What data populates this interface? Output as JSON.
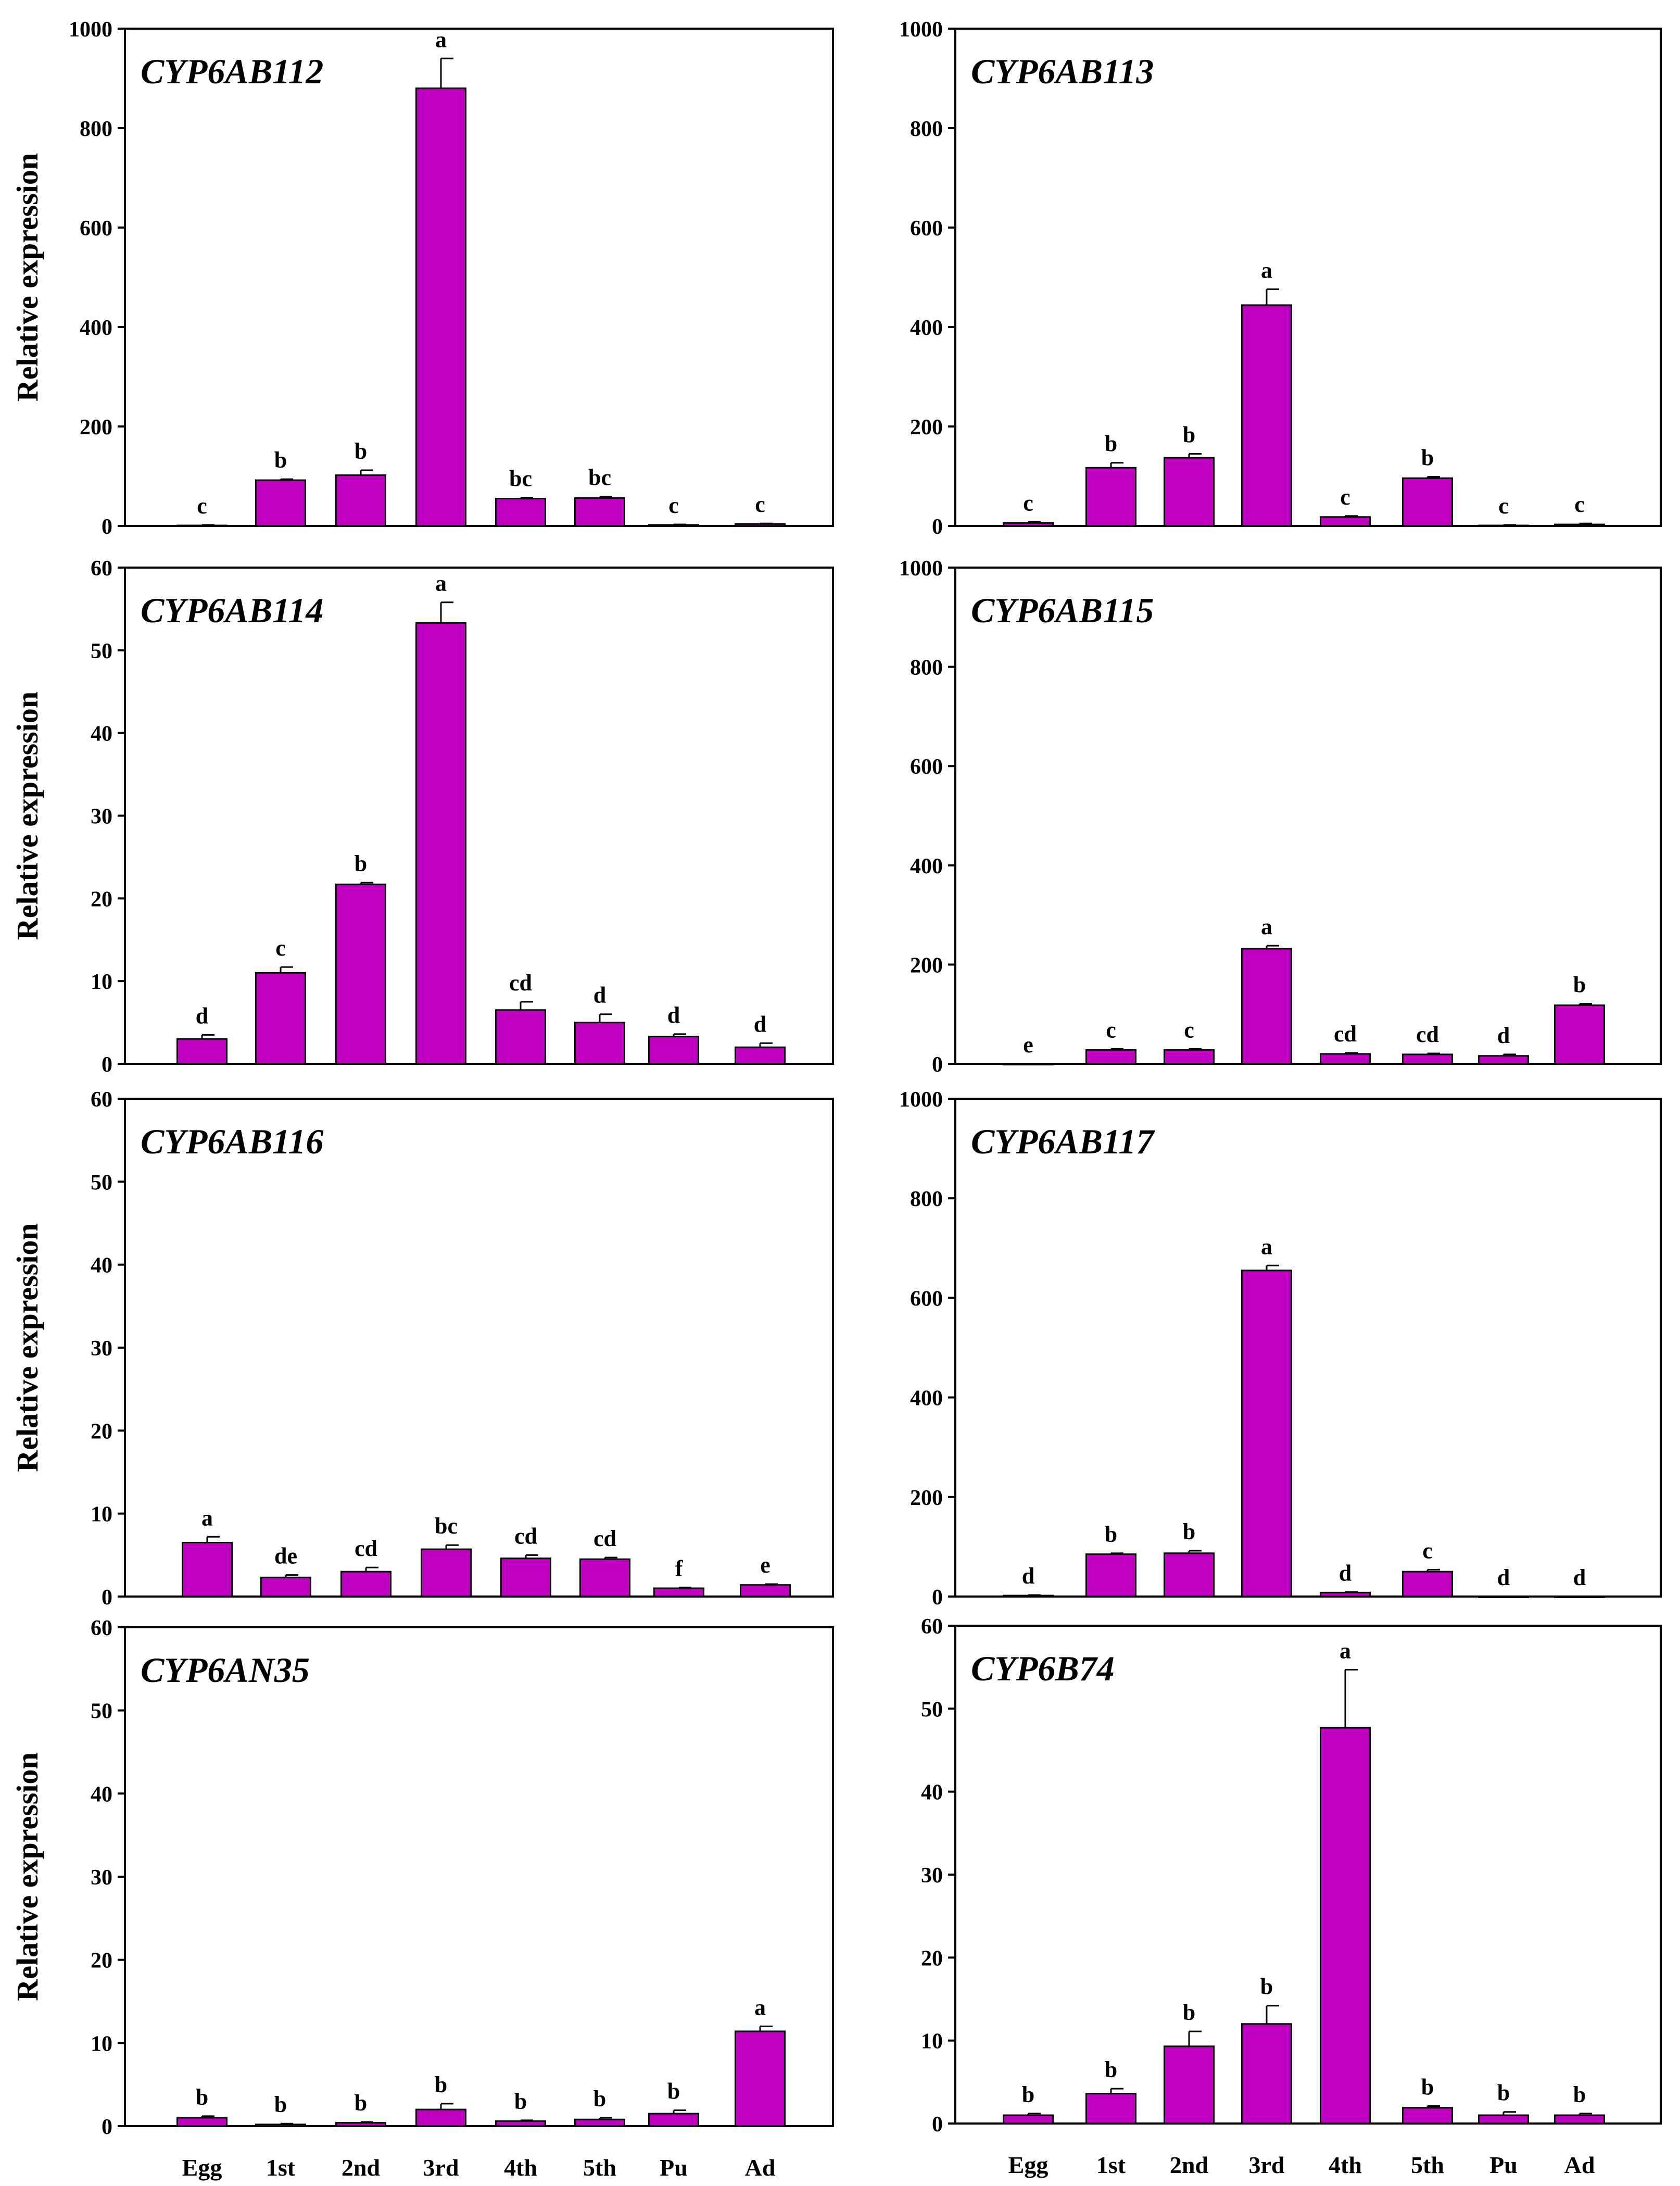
{
  "figure": {
    "bar_color": "#c000c0",
    "axis_color": "#000000",
    "ylabel": "Relative expression",
    "categories": [
      "Egg",
      "1st",
      "2nd",
      "3rd",
      "4th",
      "5th",
      "Pu",
      "Ad"
    ]
  },
  "chart_data": [
    {
      "type": "bar",
      "title": "CYP6AB112",
      "ylabel": "Relative expression",
      "ylim": [
        0,
        1000
      ],
      "yticks": [
        0,
        200,
        400,
        600,
        800,
        1000
      ],
      "categories": [
        "Egg",
        "1st",
        "2nd",
        "3rd",
        "4th",
        "5th",
        "Pu",
        "Ad"
      ],
      "values": [
        1,
        92,
        102,
        880,
        55,
        56,
        2,
        4
      ],
      "errors": [
        1,
        2,
        10,
        60,
        2,
        3,
        1,
        1
      ],
      "labels": [
        "c",
        "b",
        "b",
        "a",
        "bc",
        "bc",
        "c",
        "c"
      ],
      "bar_offset": 0
    },
    {
      "type": "bar",
      "title": "CYP6AB113",
      "ylabel": "",
      "ylim": [
        0,
        1000
      ],
      "yticks": [
        0,
        200,
        400,
        600,
        800,
        1000
      ],
      "categories": [
        "Egg",
        "1st",
        "2nd",
        "3rd",
        "4th",
        "5th",
        "Pu",
        "Ad"
      ],
      "values": [
        6,
        117,
        137,
        444,
        18,
        96,
        1,
        3
      ],
      "errors": [
        2,
        10,
        8,
        32,
        2,
        3,
        1,
        2
      ],
      "labels": [
        "c",
        "b",
        "b",
        "a",
        "c",
        "b",
        "c",
        "c"
      ],
      "bar_offset": 0
    },
    {
      "type": "bar",
      "title": "CYP6AB114",
      "ylabel": "Relative expression",
      "ylim": [
        0,
        60
      ],
      "yticks": [
        0,
        10,
        20,
        30,
        40,
        50,
        60
      ],
      "categories": [
        "Egg",
        "1st",
        "2nd",
        "3rd",
        "4th",
        "5th",
        "Pu",
        "Ad"
      ],
      "values": [
        3.0,
        11.0,
        21.7,
        53.3,
        6.5,
        5.0,
        3.3,
        2.0
      ],
      "errors": [
        0.5,
        0.7,
        0.2,
        2.5,
        1.0,
        1.0,
        0.3,
        0.5
      ],
      "labels": [
        "d",
        "c",
        "b",
        "a",
        "cd",
        "d",
        "d",
        "d"
      ],
      "bar_offset": 0
    },
    {
      "type": "bar",
      "title": "CYP6AB115",
      "ylabel": "",
      "ylim": [
        0,
        1000
      ],
      "yticks": [
        0,
        200,
        400,
        600,
        800,
        1000
      ],
      "categories": [
        "Egg",
        "1st",
        "2nd",
        "3rd",
        "4th",
        "5th",
        "Pu",
        "Ad"
      ],
      "values": [
        0,
        28,
        28,
        232,
        20,
        19,
        16,
        118
      ],
      "errors": [
        0,
        2,
        2,
        6,
        2,
        2,
        3,
        3
      ],
      "labels": [
        "e",
        "c",
        "c",
        "a",
        "cd",
        "cd",
        "d",
        "b"
      ],
      "bar_offset": 0
    },
    {
      "type": "bar",
      "title": "CYP6AB116",
      "ylabel": "Relative expression",
      "ylim": [
        0,
        60
      ],
      "yticks": [
        0,
        10,
        20,
        30,
        40,
        50,
        60
      ],
      "categories": [
        "Egg",
        "1st",
        "2nd",
        "3rd",
        "4th",
        "5th",
        "Pu",
        "Ad"
      ],
      "values": [
        6.5,
        2.3,
        3.0,
        5.7,
        4.6,
        4.5,
        1.0,
        1.4
      ],
      "errors": [
        0.7,
        0.3,
        0.5,
        0.5,
        0.4,
        0.2,
        0.1,
        0.1
      ],
      "labels": [
        "a",
        "de",
        "cd",
        "bc",
        "cd",
        "cd",
        "f",
        "e"
      ],
      "bar_offset": 10
    },
    {
      "type": "bar",
      "title": "CYP6AB117",
      "ylabel": "",
      "ylim": [
        0,
        1000
      ],
      "yticks": [
        0,
        200,
        400,
        600,
        800,
        1000
      ],
      "categories": [
        "Egg",
        "1st",
        "2nd",
        "3rd",
        "4th",
        "5th",
        "Pu",
        "Ad"
      ],
      "values": [
        2,
        85,
        87,
        655,
        8,
        50,
        0,
        0
      ],
      "errors": [
        1,
        2,
        5,
        10,
        1,
        4,
        0,
        0
      ],
      "labels": [
        "d",
        "b",
        "b",
        "a",
        "d",
        "c",
        "d",
        "d"
      ],
      "bar_offset": 0
    },
    {
      "type": "bar",
      "title": "CYP6AN35",
      "ylabel": "Relative expression",
      "ylim": [
        0,
        60
      ],
      "yticks": [
        0,
        10,
        20,
        30,
        40,
        50,
        60
      ],
      "categories": [
        "Egg",
        "1st",
        "2nd",
        "3rd",
        "4th",
        "5th",
        "Pu",
        "Ad"
      ],
      "values": [
        1.0,
        0.2,
        0.4,
        2.0,
        0.6,
        0.8,
        1.5,
        11.4
      ],
      "errors": [
        0.2,
        0.1,
        0.1,
        0.7,
        0.1,
        0.2,
        0.4,
        0.6
      ],
      "labels": [
        "b",
        "b",
        "b",
        "b",
        "b",
        "b",
        "b",
        "a"
      ],
      "bar_offset": 0
    },
    {
      "type": "bar",
      "title": "CYP6B74",
      "ylabel": "",
      "ylim": [
        0,
        60
      ],
      "yticks": [
        0,
        10,
        20,
        30,
        40,
        50,
        60
      ],
      "categories": [
        "Egg",
        "1st",
        "2nd",
        "3rd",
        "4th",
        "5th",
        "Pu",
        "Ad"
      ],
      "values": [
        1.0,
        3.6,
        9.3,
        12.0,
        47.7,
        1.9,
        1.0,
        1.0
      ],
      "errors": [
        0.2,
        0.6,
        1.8,
        2.2,
        7.0,
        0.2,
        0.4,
        0.2
      ],
      "labels": [
        "b",
        "b",
        "b",
        "b",
        "a",
        "b",
        "b",
        "b"
      ],
      "bar_offset": 0
    }
  ]
}
